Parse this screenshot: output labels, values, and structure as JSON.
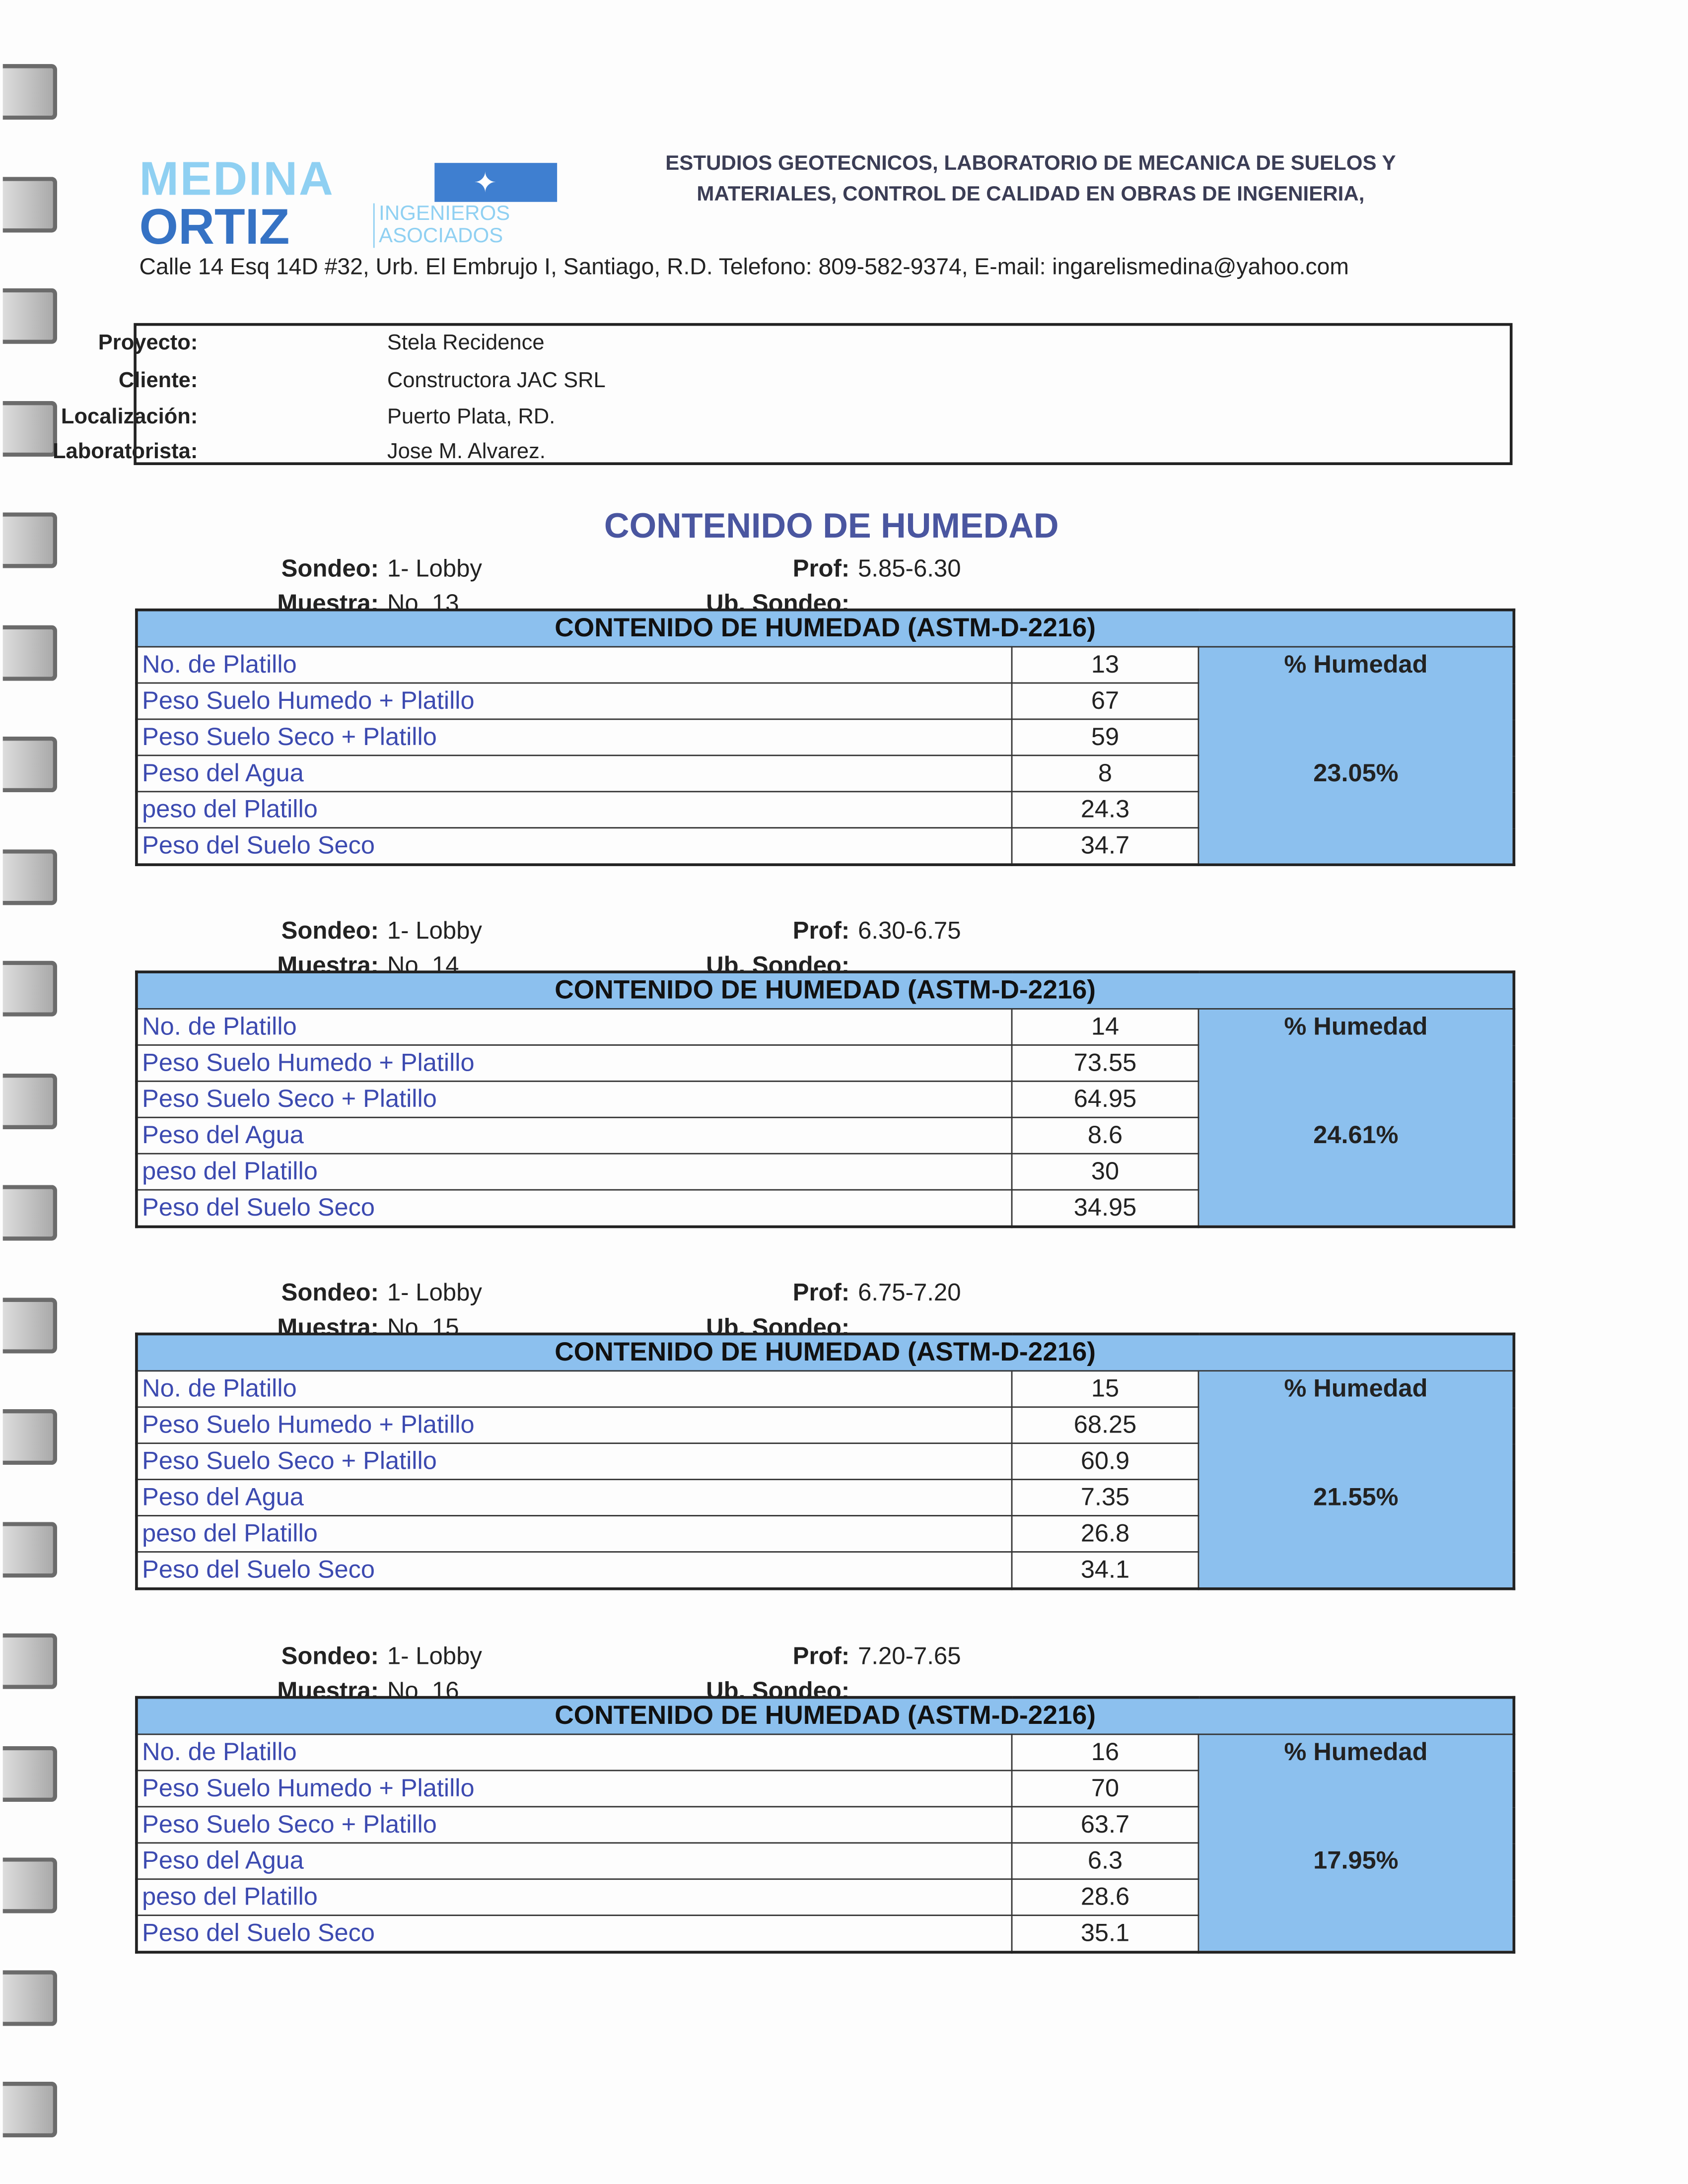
{
  "logo": {
    "line1": "MEDINA",
    "line2": "ORTIZ",
    "sub1": "INGENIEROS",
    "sub2": "ASOCIADOS"
  },
  "header": {
    "line1": "ESTUDIOS GEOTECNICOS, LABORATORIO DE MECANICA DE SUELOS Y",
    "line2": "MATERIALES, CONTROL DE CALIDAD EN OBRAS DE INGENIERIA,",
    "address": "Calle 14 Esq 14D #32, Urb. El Embrujo I, Santiago, R.D. Telefono: 809-582-9374, E-mail: ingarelismedina@yahoo.com"
  },
  "info": [
    {
      "label": "Proyecto:",
      "value": "Stela Recidence"
    },
    {
      "label": "Cliente:",
      "value": "Constructora JAC SRL"
    },
    {
      "label": "Localización:",
      "value": "Puerto Plata, RD."
    },
    {
      "label": "Laboratorista:",
      "value": "Jose M. Alvarez."
    }
  ],
  "title": "CONTENIDO DE HUMEDAD",
  "labels": {
    "sondeo": "Sondeo:",
    "prof": "Prof:",
    "muestra": "Muestra:",
    "ub_sondeo": "Ub. Sondeo:",
    "table_header": "CONTENIDO DE HUMEDAD (ASTM-D-2216)",
    "pct_header": "% Humedad",
    "rows": [
      "No. de Platillo",
      "Peso Suelo Humedo + Platillo",
      "Peso Suelo Seco + Platillo",
      "Peso del Agua",
      "peso del Platillo",
      "Peso del Suelo Seco"
    ]
  },
  "samples": [
    {
      "sondeo": "1- Lobby",
      "prof": "5.85-6.30",
      "muestra": "No. 13",
      "ub_sondeo": "",
      "values": [
        "13",
        "67",
        "59",
        "8",
        "24.3",
        "34.7"
      ],
      "humedad": "23.05%"
    },
    {
      "sondeo": "1- Lobby",
      "prof": "6.30-6.75",
      "muestra": "No. 14",
      "ub_sondeo": "",
      "values": [
        "14",
        "73.55",
        "64.95",
        "8.6",
        "30",
        "34.95"
      ],
      "humedad": "24.61%"
    },
    {
      "sondeo": "1- Lobby",
      "prof": "6.75-7.20",
      "muestra": "No. 15",
      "ub_sondeo": "",
      "values": [
        "15",
        "68.25",
        "60.9",
        "7.35",
        "26.8",
        "34.1"
      ],
      "humedad": "21.55%"
    },
    {
      "sondeo": "1- Lobby",
      "prof": "7.20-7.65",
      "muestra": "No. 16",
      "ub_sondeo": "",
      "values": [
        "16",
        "70",
        "63.7",
        "6.3",
        "28.6",
        "35.1"
      ],
      "humedad": "17.95%"
    }
  ],
  "colors": {
    "table_fill": "#8cc0ee",
    "title": "#4a56a0",
    "row_label": "#3c4ab0",
    "logo_light": "#8fd0f2",
    "logo_dark": "#3572c4"
  }
}
